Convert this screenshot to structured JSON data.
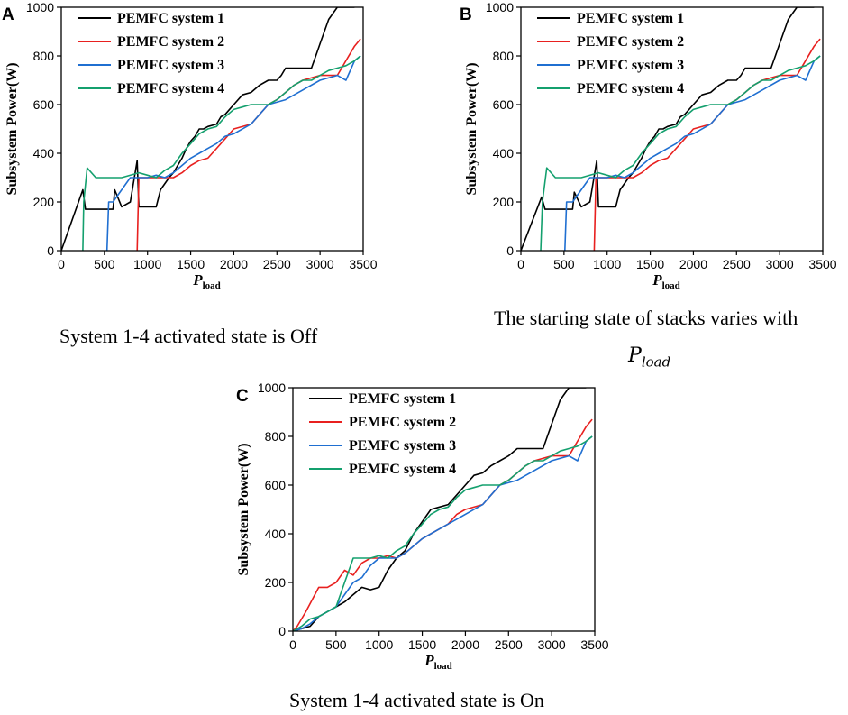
{
  "colors": {
    "series": [
      "#000000",
      "#e8201f",
      "#1f6fd1",
      "#14a06e"
    ]
  },
  "chart_data": [
    {
      "panel": "A",
      "type": "line",
      "caption": "System 1-4 activated state is Off",
      "ylabel": "Subsystem Power(W)",
      "xlabel_main": "P",
      "xlabel_sub": "load",
      "xlim": [
        0,
        3500
      ],
      "ylim": [
        0,
        1000
      ],
      "xticks": [
        0,
        500,
        1000,
        1500,
        2000,
        2500,
        3000,
        3500
      ],
      "yticks": [
        0,
        200,
        400,
        600,
        800,
        1000
      ],
      "legend_position": "top-left",
      "series": [
        {
          "name": "PEMFC system 1",
          "x": [
            0,
            250,
            280,
            320,
            600,
            620,
            700,
            800,
            880,
            900,
            1100,
            1150,
            1250,
            1300,
            1350,
            1400,
            1450,
            1500,
            1550,
            1600,
            1650,
            1700,
            1800,
            1850,
            1900,
            2000,
            2100,
            2200,
            2300,
            2400,
            2500,
            2550,
            2600,
            2650,
            2700,
            2800,
            2900,
            2950,
            3000,
            3050,
            3100,
            3200,
            3300,
            3400
          ],
          "y": [
            0,
            250,
            170,
            170,
            170,
            250,
            180,
            200,
            370,
            180,
            180,
            250,
            300,
            320,
            350,
            380,
            420,
            450,
            470,
            500,
            500,
            510,
            520,
            550,
            560,
            600,
            640,
            650,
            680,
            700,
            700,
            720,
            750,
            750,
            750,
            750,
            750,
            800,
            850,
            900,
            950,
            1000,
            1000,
            1000
          ]
        },
        {
          "name": "PEMFC system 2",
          "x": [
            880,
            900,
            1000,
            1100,
            1300,
            1400,
            1500,
            1600,
            1700,
            1800,
            1900,
            2000,
            2200,
            2300,
            2400,
            2500,
            2600,
            2700,
            2800,
            3000,
            3200,
            3400,
            3470
          ],
          "y": [
            0,
            300,
            300,
            300,
            300,
            320,
            350,
            370,
            380,
            420,
            460,
            500,
            520,
            560,
            600,
            620,
            650,
            680,
            700,
            720,
            720,
            840,
            870
          ]
        },
        {
          "name": "PEMFC system 3",
          "x": [
            530,
            550,
            600,
            700,
            800,
            900,
            1000,
            1100,
            1200,
            1300,
            1400,
            1500,
            1600,
            1700,
            1800,
            1900,
            2000,
            2200,
            2300,
            2400,
            2600,
            2800,
            3000,
            3200,
            3300,
            3400,
            3470
          ],
          "y": [
            0,
            200,
            200,
            250,
            300,
            300,
            300,
            310,
            300,
            320,
            350,
            380,
            400,
            420,
            440,
            470,
            480,
            520,
            560,
            600,
            620,
            660,
            700,
            720,
            700,
            780,
            800
          ]
        },
        {
          "name": "PEMFC system 4",
          "x": [
            250,
            260,
            300,
            400,
            600,
            700,
            900,
            1000,
            1100,
            1200,
            1300,
            1400,
            1500,
            1600,
            1700,
            1800,
            1900,
            2000,
            2100,
            2200,
            2300,
            2400,
            2500,
            2600,
            2700,
            2800,
            2900,
            3000,
            3100,
            3200,
            3300,
            3400,
            3470
          ],
          "y": [
            0,
            200,
            340,
            300,
            300,
            300,
            320,
            310,
            300,
            330,
            350,
            400,
            440,
            480,
            500,
            510,
            550,
            580,
            590,
            600,
            600,
            600,
            620,
            650,
            680,
            700,
            700,
            720,
            740,
            750,
            760,
            780,
            800
          ]
        }
      ]
    },
    {
      "panel": "B",
      "type": "line",
      "caption_line1": "The starting state of stacks varies with",
      "caption_math_main": "P",
      "caption_math_sub": "load",
      "ylabel": "Subsystem Power(W)",
      "xlabel_main": "P",
      "xlabel_sub": "load",
      "xlim": [
        0,
        3500
      ],
      "ylim": [
        0,
        1000
      ],
      "xticks": [
        0,
        500,
        1000,
        1500,
        2000,
        2500,
        3000,
        3500
      ],
      "yticks": [
        0,
        200,
        400,
        600,
        800,
        1000
      ],
      "legend_position": "top-left",
      "series": [
        {
          "name": "PEMFC system 1",
          "x": [
            0,
            240,
            280,
            320,
            600,
            620,
            700,
            800,
            880,
            900,
            1100,
            1150,
            1250,
            1300,
            1350,
            1400,
            1450,
            1500,
            1550,
            1600,
            1650,
            1700,
            1800,
            1850,
            1900,
            2000,
            2100,
            2200,
            2300,
            2400,
            2500,
            2550,
            2600,
            2650,
            2700,
            2800,
            2900,
            2950,
            3000,
            3050,
            3100,
            3200,
            3300,
            3400
          ],
          "y": [
            0,
            220,
            170,
            170,
            170,
            240,
            180,
            200,
            370,
            180,
            180,
            250,
            300,
            320,
            350,
            380,
            420,
            450,
            470,
            500,
            500,
            510,
            520,
            550,
            560,
            600,
            640,
            650,
            680,
            700,
            700,
            720,
            750,
            750,
            750,
            750,
            750,
            800,
            850,
            900,
            950,
            1000,
            1000,
            1000
          ]
        },
        {
          "name": "PEMFC system 2",
          "x": [
            850,
            870,
            1000,
            1100,
            1300,
            1400,
            1500,
            1600,
            1700,
            1800,
            1900,
            2000,
            2200,
            2300,
            2400,
            2500,
            2600,
            2700,
            2800,
            3000,
            3200,
            3400,
            3470
          ],
          "y": [
            0,
            300,
            300,
            300,
            300,
            320,
            350,
            370,
            380,
            420,
            460,
            500,
            520,
            560,
            600,
            620,
            650,
            680,
            700,
            720,
            720,
            840,
            870
          ]
        },
        {
          "name": "PEMFC system 3",
          "x": [
            510,
            530,
            600,
            700,
            800,
            900,
            1000,
            1100,
            1200,
            1300,
            1400,
            1500,
            1600,
            1700,
            1800,
            1900,
            2000,
            2200,
            2300,
            2400,
            2600,
            2800,
            3000,
            3200,
            3300,
            3400,
            3470
          ],
          "y": [
            0,
            200,
            200,
            250,
            300,
            300,
            300,
            310,
            300,
            320,
            350,
            380,
            400,
            420,
            440,
            470,
            480,
            520,
            560,
            600,
            620,
            660,
            700,
            720,
            700,
            780,
            800
          ]
        },
        {
          "name": "PEMFC system 4",
          "x": [
            230,
            250,
            300,
            400,
            600,
            700,
            900,
            1000,
            1100,
            1200,
            1300,
            1400,
            1500,
            1600,
            1700,
            1800,
            1900,
            2000,
            2100,
            2200,
            2300,
            2400,
            2500,
            2600,
            2700,
            2800,
            2900,
            3000,
            3100,
            3200,
            3300,
            3400,
            3470
          ],
          "y": [
            0,
            200,
            340,
            300,
            300,
            300,
            320,
            310,
            300,
            330,
            350,
            400,
            440,
            480,
            500,
            510,
            550,
            580,
            590,
            600,
            600,
            600,
            620,
            650,
            680,
            700,
            700,
            720,
            740,
            750,
            760,
            780,
            800
          ]
        }
      ]
    },
    {
      "panel": "C",
      "type": "line",
      "caption": "System 1-4 activated state is On",
      "ylabel": "Subsystem Power(W)",
      "xlabel_main": "P",
      "xlabel_sub": "load",
      "xlim": [
        0,
        3500
      ],
      "ylim": [
        0,
        1000
      ],
      "xticks": [
        0,
        500,
        1000,
        1500,
        2000,
        2500,
        3000,
        3500
      ],
      "yticks": [
        0,
        200,
        400,
        600,
        800,
        1000
      ],
      "legend_position": "top-left",
      "series": [
        {
          "name": "PEMFC system 1",
          "x": [
            0,
            200,
            300,
            400,
            500,
            600,
            700,
            800,
            900,
            1000,
            1100,
            1200,
            1300,
            1400,
            1500,
            1600,
            1700,
            1800,
            1900,
            2000,
            2100,
            2200,
            2300,
            2400,
            2500,
            2600,
            2700,
            2800,
            2900,
            3000,
            3100,
            3200,
            3300,
            3400
          ],
          "y": [
            0,
            20,
            60,
            80,
            100,
            120,
            150,
            180,
            170,
            180,
            250,
            300,
            330,
            400,
            450,
            500,
            510,
            520,
            560,
            600,
            640,
            650,
            680,
            700,
            720,
            750,
            750,
            750,
            750,
            850,
            950,
            1000,
            1000,
            1000
          ]
        },
        {
          "name": "PEMFC system 2",
          "x": [
            0,
            50,
            150,
            300,
            400,
            500,
            600,
            700,
            800,
            900,
            1000,
            1100,
            1200,
            1300,
            1400,
            1500,
            1600,
            1700,
            1800,
            1900,
            2000,
            2200,
            2300,
            2400,
            2500,
            2600,
            2700,
            2800,
            3000,
            3200,
            3400,
            3470
          ],
          "y": [
            0,
            20,
            80,
            180,
            180,
            200,
            250,
            230,
            280,
            300,
            300,
            310,
            300,
            320,
            350,
            380,
            400,
            420,
            440,
            480,
            500,
            520,
            560,
            600,
            620,
            650,
            680,
            700,
            720,
            720,
            840,
            870
          ]
        },
        {
          "name": "PEMFC system 3",
          "x": [
            0,
            100,
            200,
            300,
            400,
            500,
            600,
            700,
            800,
            900,
            1000,
            1100,
            1200,
            1300,
            1400,
            1500,
            1600,
            1700,
            1800,
            1900,
            2000,
            2200,
            2300,
            2400,
            2600,
            2800,
            3000,
            3200,
            3300,
            3400,
            3470
          ],
          "y": [
            0,
            10,
            30,
            60,
            80,
            100,
            150,
            200,
            220,
            270,
            300,
            300,
            300,
            320,
            350,
            380,
            400,
            420,
            440,
            460,
            480,
            520,
            560,
            600,
            620,
            660,
            700,
            720,
            700,
            780,
            800
          ]
        },
        {
          "name": "PEMFC system 4",
          "x": [
            0,
            100,
            200,
            300,
            400,
            500,
            600,
            700,
            800,
            900,
            1000,
            1100,
            1200,
            1300,
            1400,
            1500,
            1600,
            1700,
            1800,
            1900,
            2000,
            2100,
            2200,
            2300,
            2400,
            2500,
            2600,
            2700,
            2800,
            2900,
            3000,
            3100,
            3200,
            3300,
            3400,
            3470
          ],
          "y": [
            0,
            20,
            50,
            60,
            80,
            100,
            200,
            300,
            300,
            300,
            310,
            300,
            330,
            350,
            400,
            440,
            480,
            500,
            510,
            550,
            580,
            590,
            600,
            600,
            600,
            620,
            650,
            680,
            700,
            700,
            720,
            740,
            750,
            760,
            780,
            800
          ]
        }
      ]
    }
  ]
}
